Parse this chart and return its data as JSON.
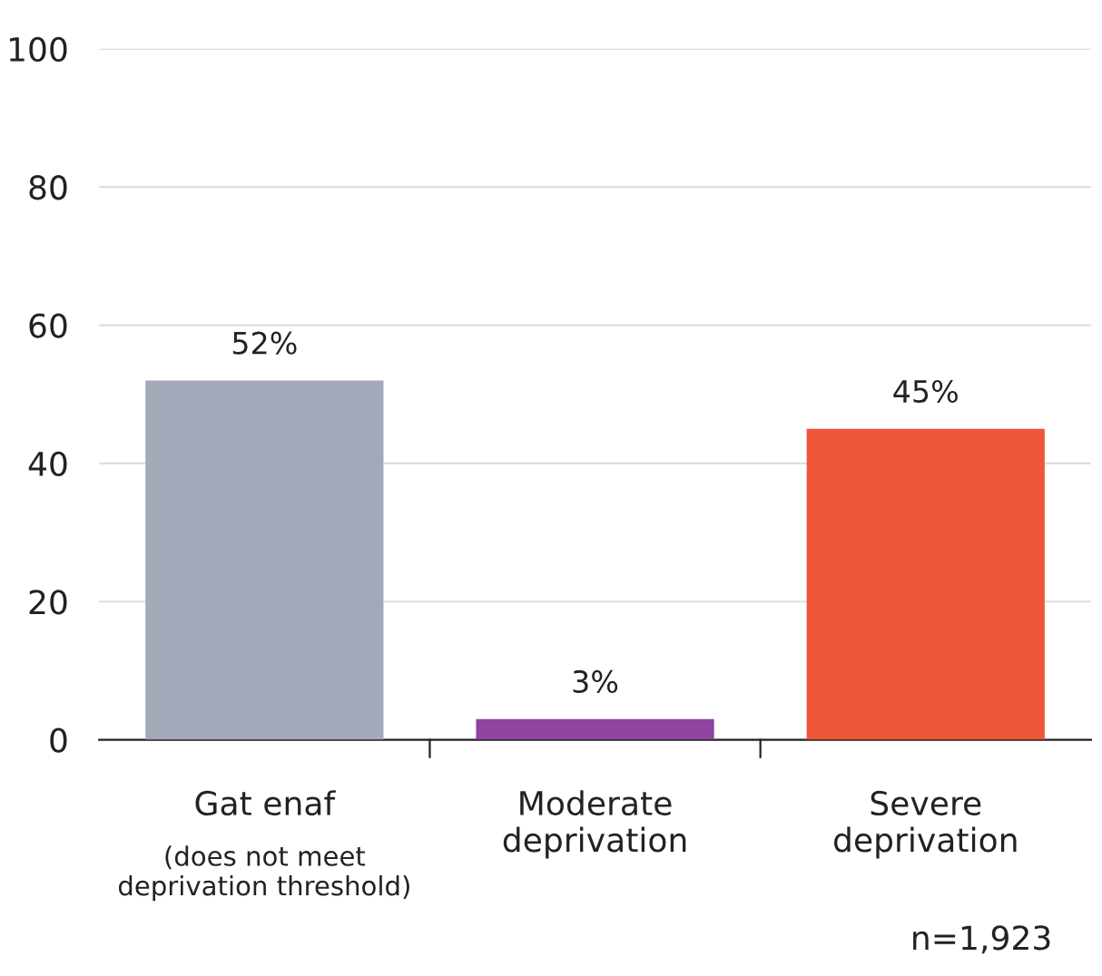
{
  "chart_data": {
    "type": "bar",
    "categories": [
      "Gat enaf",
      "Moderate\ndeprivation",
      "Severe\ndeprivation"
    ],
    "values": [
      52,
      3,
      45
    ],
    "colors": [
      "#a3a9b8",
      "#8e44a0",
      "#f0573a"
    ],
    "value_labels": [
      "52%",
      "3%",
      "45%"
    ],
    "ylim": [
      0,
      100
    ],
    "yticks": [
      0,
      20,
      40,
      60,
      80,
      100
    ],
    "grid": "y",
    "annotations": [
      "(does not meet\ndeprivation threshold)",
      "n=1,923"
    ]
  }
}
